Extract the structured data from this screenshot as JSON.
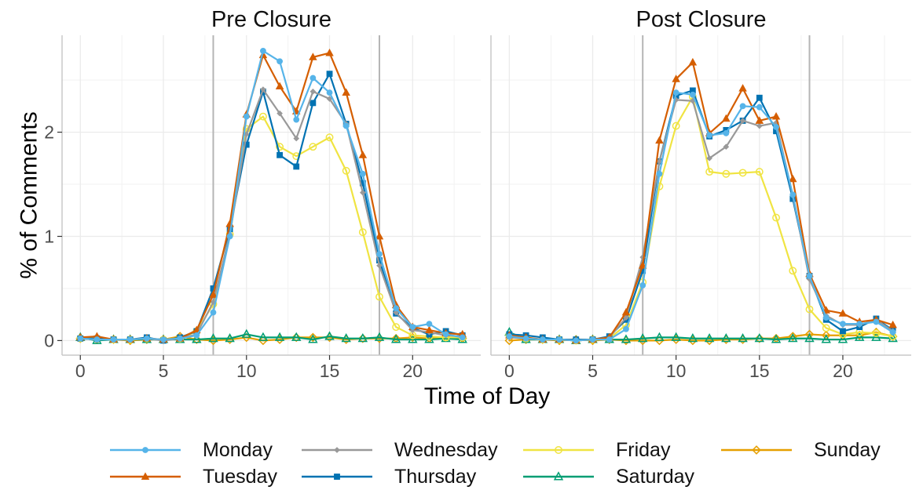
{
  "chart_data": {
    "type": "line",
    "ylabel": "% of Comments",
    "xlabel": "Time of Day",
    "xlim": [
      -1.1,
      24.1
    ],
    "ylim": [
      -0.14,
      2.93
    ],
    "x_ticks": [
      0,
      5,
      10,
      15,
      20
    ],
    "y_ticks": [
      0,
      1,
      2
    ],
    "vlines": [
      8,
      18
    ],
    "grid": true,
    "legend_position": "bottom",
    "colors": {
      "Monday": "#56B4E9",
      "Tuesday": "#D55E00",
      "Wednesday": "#999999",
      "Thursday": "#0072B2",
      "Friday": "#F0E442",
      "Saturday": "#009E73",
      "Sunday": "#E69F00"
    },
    "markers": {
      "Monday": "circle",
      "Tuesday": "triangle",
      "Wednesday": "diamond",
      "Thursday": "square",
      "Friday": "circle-open",
      "Saturday": "triangle-open",
      "Sunday": "diamond-open"
    },
    "legend_order": [
      "Monday",
      "Tuesday",
      "Wednesday",
      "Thursday",
      "Friday",
      "Saturday",
      "Sunday"
    ],
    "x": [
      0,
      1,
      2,
      3,
      4,
      5,
      6,
      7,
      8,
      9,
      10,
      11,
      12,
      13,
      14,
      15,
      16,
      17,
      18,
      19,
      20,
      21,
      22,
      23
    ],
    "panels": [
      {
        "title": "Pre Closure",
        "series": [
          {
            "name": "Monday",
            "values": [
              0.02,
              0.01,
              0.01,
              0.01,
              0.02,
              0.01,
              0.02,
              0.05,
              0.27,
              1.0,
              2.15,
              2.78,
              2.68,
              2.12,
              2.52,
              2.38,
              2.06,
              1.6,
              0.83,
              0.31,
              0.13,
              0.16,
              0.06,
              0.03
            ]
          },
          {
            "name": "Tuesday",
            "values": [
              0.03,
              0.04,
              0.01,
              0.01,
              0.02,
              0.01,
              0.02,
              0.1,
              0.44,
              1.12,
              2.17,
              2.74,
              2.44,
              2.2,
              2.72,
              2.76,
              2.38,
              1.78,
              1.0,
              0.34,
              0.13,
              0.1,
              0.07,
              0.06
            ]
          },
          {
            "name": "Wednesday",
            "values": [
              0.02,
              0.01,
              0.01,
              0.01,
              0.02,
              0.0,
              0.02,
              0.06,
              0.37,
              1.02,
              1.98,
              2.41,
              2.18,
              1.94,
              2.39,
              2.32,
              2.08,
              1.42,
              0.72,
              0.27,
              0.1,
              0.08,
              0.05,
              0.04
            ]
          },
          {
            "name": "Thursday",
            "values": [
              0.02,
              0.02,
              0.01,
              0.01,
              0.03,
              0.0,
              0.03,
              0.09,
              0.5,
              1.07,
              1.88,
              2.39,
              1.78,
              1.67,
              2.28,
              2.56,
              2.08,
              1.51,
              0.77,
              0.26,
              0.12,
              0.06,
              0.09,
              0.05
            ]
          },
          {
            "name": "Friday",
            "values": [
              0.02,
              0.02,
              0.01,
              0.01,
              0.02,
              0.01,
              0.02,
              0.09,
              0.35,
              1.02,
              2.03,
              2.15,
              1.86,
              1.77,
              1.86,
              1.95,
              1.63,
              1.04,
              0.42,
              0.13,
              0.05,
              0.04,
              0.03,
              0.03
            ]
          },
          {
            "name": "Saturday",
            "values": [
              0.03,
              0.0,
              0.01,
              0.01,
              0.01,
              0.01,
              0.01,
              0.01,
              0.02,
              0.02,
              0.06,
              0.03,
              0.03,
              0.03,
              0.01,
              0.04,
              0.02,
              0.02,
              0.03,
              0.01,
              0.01,
              0.01,
              0.02,
              0.01
            ]
          },
          {
            "name": "Sunday",
            "values": [
              0.02,
              0.01,
              0.01,
              0.0,
              0.01,
              0.01,
              0.04,
              0.01,
              0.0,
              0.01,
              0.03,
              0.0,
              0.01,
              0.03,
              0.03,
              0.03,
              0.01,
              0.02,
              0.02,
              0.02,
              0.03,
              0.02,
              0.03,
              0.02
            ]
          }
        ]
      },
      {
        "title": "Post Closure",
        "series": [
          {
            "name": "Monday",
            "values": [
              0.04,
              0.02,
              0.01,
              0.01,
              0.0,
              0.01,
              0.01,
              0.11,
              0.53,
              1.6,
              2.38,
              2.36,
              1.97,
              1.99,
              2.25,
              2.24,
              2.05,
              1.4,
              0.62,
              0.22,
              0.16,
              0.16,
              0.18,
              0.08
            ]
          },
          {
            "name": "Tuesday",
            "values": [
              0.05,
              0.03,
              0.01,
              0.01,
              0.0,
              0.01,
              0.03,
              0.27,
              0.72,
              1.92,
              2.51,
              2.67,
              1.99,
              2.13,
              2.42,
              2.11,
              2.15,
              1.55,
              0.64,
              0.29,
              0.26,
              0.18,
              0.2,
              0.15
            ]
          },
          {
            "name": "Wednesday",
            "values": [
              0.03,
              0.02,
              0.01,
              0.01,
              0.0,
              0.01,
              0.03,
              0.22,
              0.8,
              1.72,
              2.31,
              2.3,
              1.75,
              1.86,
              2.11,
              2.06,
              2.09,
              1.39,
              0.59,
              0.24,
              0.15,
              0.15,
              0.2,
              0.09
            ]
          },
          {
            "name": "Thursday",
            "values": [
              0.06,
              0.05,
              0.03,
              0.01,
              0.01,
              0.01,
              0.04,
              0.2,
              0.67,
              1.72,
              2.35,
              2.4,
              1.96,
              2.02,
              2.11,
              2.33,
              2.01,
              1.36,
              0.62,
              0.2,
              0.09,
              0.13,
              0.21,
              0.1
            ]
          },
          {
            "name": "Friday",
            "values": [
              0.05,
              0.02,
              0.01,
              0.01,
              0.0,
              0.01,
              0.02,
              0.15,
              0.56,
              1.48,
              2.06,
              2.34,
              1.62,
              1.6,
              1.61,
              1.62,
              1.18,
              0.67,
              0.3,
              0.12,
              0.06,
              0.08,
              0.07,
              0.04
            ]
          },
          {
            "name": "Saturday",
            "values": [
              0.08,
              0.01,
              0.01,
              0.01,
              0.0,
              0.01,
              0.01,
              0.01,
              0.02,
              0.03,
              0.03,
              0.02,
              0.02,
              0.02,
              0.02,
              0.02,
              0.01,
              0.02,
              0.02,
              0.01,
              0.01,
              0.03,
              0.03,
              0.02
            ]
          },
          {
            "name": "Sunday",
            "values": [
              0.0,
              0.01,
              0.01,
              0.0,
              0.01,
              0.0,
              0.01,
              0.0,
              0.0,
              0.0,
              0.01,
              0.0,
              0.0,
              0.01,
              0.01,
              0.02,
              0.02,
              0.04,
              0.06,
              0.05,
              0.05,
              0.05,
              0.08,
              0.04
            ]
          }
        ]
      }
    ]
  }
}
